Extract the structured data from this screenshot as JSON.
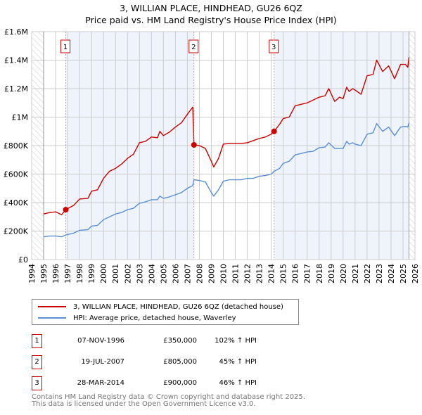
{
  "chart_data": {
    "type": "line",
    "title": "3, WILLIAN PLACE, HINDHEAD, GU26 6QZ",
    "subtitle": "Price paid vs. HM Land Registry's House Price Index (HPI)",
    "xlim": [
      1994,
      2026
    ],
    "ylim": [
      0,
      1600000
    ],
    "x_ticks": [
      "1994",
      "1995",
      "1996",
      "1997",
      "1998",
      "1999",
      "2000",
      "2001",
      "2002",
      "2003",
      "2004",
      "2005",
      "2006",
      "2007",
      "2008",
      "2009",
      "2010",
      "2011",
      "2012",
      "2013",
      "2014",
      "2015",
      "2016",
      "2017",
      "2018",
      "2019",
      "2020",
      "2021",
      "2022",
      "2023",
      "2024",
      "2025",
      "2026"
    ],
    "y_ticks": [
      {
        "v": 0,
        "label": "£0"
      },
      {
        "v": 200000,
        "label": "£200K"
      },
      {
        "v": 400000,
        "label": "£400K"
      },
      {
        "v": 600000,
        "label": "£600K"
      },
      {
        "v": 800000,
        "label": "£800K"
      },
      {
        "v": 1000000,
        "label": "£1M"
      },
      {
        "v": 1200000,
        "label": "£1.2M"
      },
      {
        "v": 1400000,
        "label": "£1.4M"
      },
      {
        "v": 1600000,
        "label": "£1.6M"
      }
    ],
    "grid": true,
    "series": [
      {
        "name": "3, WILLIAN PLACE, HINDHEAD, GU26 6QZ (detached house)",
        "color": "#cc0000",
        "x": [
          1995,
          1995.5,
          1996,
          1996.5,
          1996.85,
          1997.5,
          1998,
          1998.7,
          1999,
          1999.5,
          2000,
          2000.5,
          2001,
          2001.5,
          2002,
          2002.5,
          2003,
          2003.5,
          2004,
          2004.5,
          2004.7,
          2005,
          2005.5,
          2006,
          2006.5,
          2007,
          2007.45,
          2007.55,
          2008,
          2008.5,
          2009,
          2009.2,
          2009.6,
          2010,
          2010.5,
          2011,
          2011.5,
          2012,
          2012.5,
          2013,
          2013.5,
          2014,
          2014.24,
          2014.7,
          2015,
          2015.5,
          2016,
          2016.5,
          2017,
          2017.5,
          2018,
          2018.5,
          2018.8,
          2019.3,
          2019.7,
          2020,
          2020.3,
          2020.5,
          2020.8,
          2021,
          2021.5,
          2022,
          2022.5,
          2022.8,
          2023.3,
          2023.8,
          2024.3,
          2024.8,
          2025.2,
          2025.4,
          2025.5
        ],
        "y": [
          320000,
          330000,
          335000,
          315000,
          350000,
          380000,
          425000,
          430000,
          480000,
          490000,
          570000,
          620000,
          640000,
          670000,
          710000,
          740000,
          820000,
          830000,
          860000,
          855000,
          900000,
          870000,
          895000,
          930000,
          960000,
          1020000,
          1070000,
          805000,
          800000,
          780000,
          690000,
          650000,
          710000,
          810000,
          815000,
          815000,
          815000,
          820000,
          835000,
          850000,
          860000,
          880000,
          900000,
          950000,
          990000,
          1000000,
          1080000,
          1090000,
          1100000,
          1120000,
          1140000,
          1150000,
          1200000,
          1110000,
          1140000,
          1130000,
          1210000,
          1180000,
          1200000,
          1190000,
          1160000,
          1290000,
          1300000,
          1400000,
          1320000,
          1360000,
          1270000,
          1370000,
          1370000,
          1350000,
          1420000
        ]
      },
      {
        "name": "HPI: Average price, detached house, Waverley",
        "color": "#5b8fd4",
        "x": [
          1995,
          1995.5,
          1996,
          1996.5,
          1996.85,
          1997.5,
          1998,
          1998.7,
          1999,
          1999.5,
          2000,
          2000.5,
          2001,
          2001.5,
          2002,
          2002.5,
          2003,
          2003.5,
          2004,
          2004.5,
          2004.7,
          2005,
          2005.5,
          2006,
          2006.5,
          2007,
          2007.45,
          2007.55,
          2008,
          2008.5,
          2009,
          2009.2,
          2009.6,
          2010,
          2010.5,
          2011,
          2011.5,
          2012,
          2012.5,
          2013,
          2013.5,
          2014,
          2014.24,
          2014.7,
          2015,
          2015.5,
          2016,
          2016.5,
          2017,
          2017.5,
          2018,
          2018.5,
          2018.8,
          2019.3,
          2019.7,
          2020,
          2020.3,
          2020.5,
          2020.8,
          2021,
          2021.5,
          2022,
          2022.5,
          2022.8,
          2023.3,
          2023.8,
          2024.3,
          2024.8,
          2025.2,
          2025.4,
          2025.5
        ],
        "y": [
          160000,
          165000,
          165000,
          160000,
          173000,
          185000,
          205000,
          210000,
          235000,
          240000,
          280000,
          300000,
          320000,
          330000,
          350000,
          360000,
          395000,
          405000,
          420000,
          420000,
          445000,
          430000,
          440000,
          455000,
          470000,
          500000,
          520000,
          560000,
          555000,
          545000,
          470000,
          445000,
          490000,
          550000,
          560000,
          560000,
          560000,
          570000,
          570000,
          585000,
          590000,
          600000,
          620000,
          640000,
          675000,
          690000,
          735000,
          745000,
          755000,
          760000,
          785000,
          790000,
          820000,
          780000,
          780000,
          780000,
          830000,
          810000,
          820000,
          810000,
          800000,
          880000,
          890000,
          955000,
          900000,
          930000,
          870000,
          930000,
          935000,
          930000,
          960000
        ]
      }
    ],
    "sales": [
      {
        "num": "1",
        "x": 1996.85,
        "price": 350000,
        "date": "07-NOV-1996",
        "price_label": "£350,000",
        "hpi": "102% ↑ HPI"
      },
      {
        "num": "2",
        "x": 2007.55,
        "price": 805000,
        "date": "19-JUL-2007",
        "price_label": "£805,000",
        "hpi": "45% ↑ HPI"
      },
      {
        "num": "3",
        "x": 2014.24,
        "price": 900000,
        "date": "28-MAR-2014",
        "price_label": "£900,000",
        "hpi": "46% ↑ HPI"
      }
    ],
    "data_range": [
      1995,
      2025.5
    ],
    "legend_position": "below"
  },
  "footer": {
    "line1": "Contains HM Land Registry data © Crown copyright and database right 2025.",
    "line2": "This data is licensed under the Open Government Licence v3.0."
  }
}
